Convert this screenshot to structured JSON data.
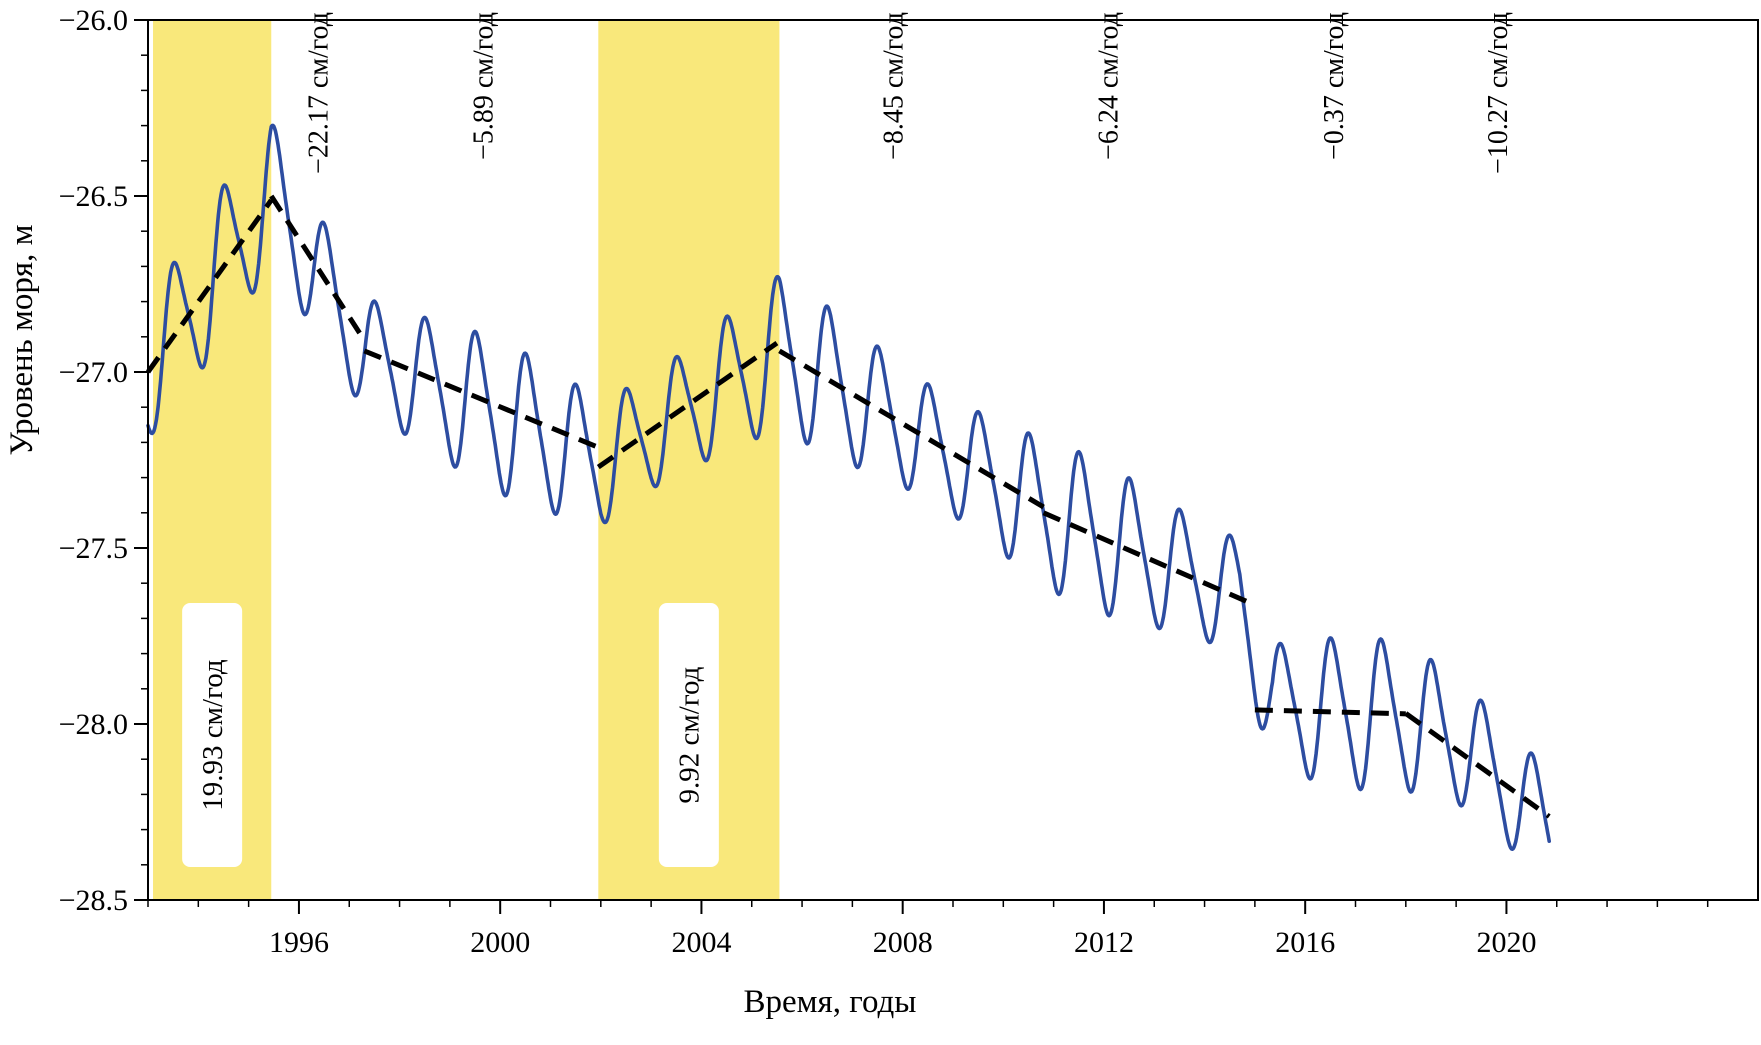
{
  "figure": {
    "ylabel": "Уровень моря, м",
    "xlabel": "Время, годы"
  },
  "chart_data": {
    "type": "line",
    "title": "",
    "xlabel": "Время, годы",
    "ylabel": "Уровень моря, м",
    "xlim": [
      1993,
      2025
    ],
    "ylim": [
      -28.5,
      -26.0
    ],
    "grid": false,
    "legend": "none",
    "x_ticks": {
      "values": [
        1996,
        2000,
        2004,
        2008,
        2012,
        2016,
        2020
      ],
      "labels": [
        "1996",
        "2000",
        "2004",
        "2008",
        "2012",
        "2016",
        "2020"
      ]
    },
    "y_ticks": {
      "values": [
        -26.0,
        -26.5,
        -27.0,
        -27.5,
        -28.0,
        -28.5
      ],
      "labels": [
        "−26.0",
        "−26.5",
        "−27.0",
        "−27.5",
        "−28.0",
        "−28.5"
      ]
    },
    "colors": {
      "series": "#2d4da1",
      "trend": "#000000",
      "band": "#f9e87b",
      "band_label_box": "#ffffff"
    },
    "series": {
      "name": "sea-level-monthly",
      "t_start": 1993.0,
      "t_end": 2020.85,
      "samples_per_year": 60,
      "baseline_knots": [
        [
          1993.0,
          -27.0
        ],
        [
          1995.45,
          -26.49
        ],
        [
          1997.3,
          -26.95
        ],
        [
          2002.0,
          -27.26
        ],
        [
          2005.55,
          -26.94
        ],
        [
          2010.8,
          -27.4
        ],
        [
          2014.7,
          -27.64
        ],
        [
          2015.35,
          -27.95
        ],
        [
          2018.0,
          -27.98
        ],
        [
          2019.2,
          -28.06
        ],
        [
          2020.85,
          -28.3
        ]
      ],
      "seasonal": {
        "amplitude_base": 0.18,
        "amplitude_variation": 0.025,
        "amplitude_freq": 1.1,
        "peak_phase": 0.55,
        "skew": 0.18
      }
    },
    "trend_segments": [
      {
        "t0": 1993.0,
        "t1": 1995.45,
        "y0": -27.0,
        "rate_cm_per_year": 19.93,
        "label": "19.93 см/год"
      },
      {
        "t0": 1995.45,
        "t1": 1997.25,
        "y0": -26.5,
        "rate_cm_per_year": -22.17,
        "label": "−22.17 см/год"
      },
      {
        "t0": 1997.3,
        "t1": 2001.95,
        "y0": -26.94,
        "rate_cm_per_year": -5.89,
        "label": "−5.89 см/год"
      },
      {
        "t0": 2001.95,
        "t1": 2005.5,
        "y0": -27.27,
        "rate_cm_per_year": 9.92,
        "label": "9.92 см/год"
      },
      {
        "t0": 2005.55,
        "t1": 2010.8,
        "y0": -26.94,
        "rate_cm_per_year": -8.45,
        "label": "−8.45 см/год"
      },
      {
        "t0": 2010.8,
        "t1": 2014.95,
        "y0": -27.4,
        "rate_cm_per_year": -6.24,
        "label": "−6.24 см/год"
      },
      {
        "t0": 2015.0,
        "t1": 2018.0,
        "y0": -27.96,
        "rate_cm_per_year": -0.37,
        "label": "−0.37 см/год"
      },
      {
        "t0": 2018.0,
        "t1": 2020.85,
        "y0": -27.97,
        "rate_cm_per_year": -10.27,
        "label": "−10.27 см/год"
      }
    ],
    "bands": [
      {
        "x0": 1993.1,
        "x1": 1995.45,
        "label": "19.93 см/год"
      },
      {
        "x0": 2001.95,
        "x1": 2005.55,
        "label": "9.92 см/год"
      }
    ],
    "top_annotations": [
      {
        "label": "−22.17 см/год",
        "x_year": 1996.38
      },
      {
        "label": "−5.89 см/год",
        "x_year": 1999.66
      },
      {
        "label": "−8.45 см/год",
        "x_year": 2007.81
      },
      {
        "label": "−6.24 см/год",
        "x_year": 2012.08
      },
      {
        "label": "−0.37 см/год",
        "x_year": 2016.56
      },
      {
        "label": "−10.27 см/год",
        "x_year": 2019.82
      }
    ]
  }
}
